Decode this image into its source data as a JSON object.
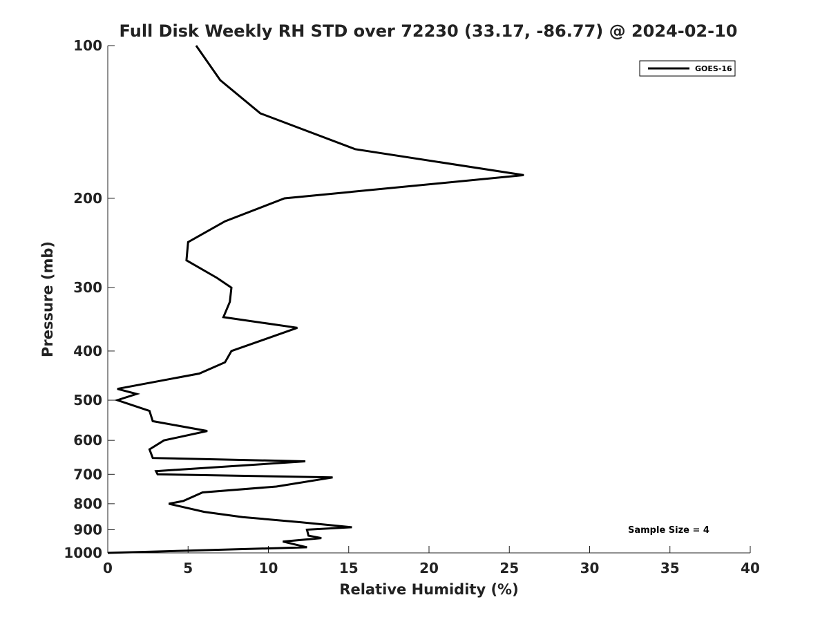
{
  "chart_data": {
    "type": "line",
    "title": "Full Disk Weekly RH STD over 72230 (33.17, -86.77) @ 2024-02-10",
    "xlabel": "Relative Humidity (%)",
    "ylabel": "Pressure (mb)",
    "xlim": [
      0,
      40
    ],
    "ylim": [
      1000,
      100
    ],
    "yscale": "log",
    "x_ticks": [
      0,
      5,
      10,
      15,
      20,
      25,
      30,
      35,
      40
    ],
    "x_tick_labels": [
      "0",
      "5",
      "10",
      "15",
      "20",
      "25",
      "30",
      "35",
      "40"
    ],
    "y_ticks": [
      100,
      200,
      300,
      400,
      500,
      600,
      700,
      800,
      900,
      1000
    ],
    "y_tick_labels": [
      "100",
      "200",
      "300",
      "400",
      "500",
      "600",
      "700",
      "800",
      "900",
      "1000"
    ],
    "legend": {
      "position": "top-right",
      "entries": [
        "GOES-16"
      ]
    },
    "annotation": "Sample Size = 4",
    "series": [
      {
        "name": "GOES-16",
        "color": "#000000",
        "points": [
          [
            5.5,
            100
          ],
          [
            7.0,
            117
          ],
          [
            9.5,
            136
          ],
          [
            15.4,
            160
          ],
          [
            25.9,
            180
          ],
          [
            11.0,
            200
          ],
          [
            7.3,
            222
          ],
          [
            5.0,
            244
          ],
          [
            4.9,
            265
          ],
          [
            6.8,
            287
          ],
          [
            7.7,
            300
          ],
          [
            7.6,
            320
          ],
          [
            7.2,
            343
          ],
          [
            11.8,
            360
          ],
          [
            9.7,
            380
          ],
          [
            7.7,
            400
          ],
          [
            7.3,
            421
          ],
          [
            5.7,
            443
          ],
          [
            0.6,
            475
          ],
          [
            1.8,
            486
          ],
          [
            0.6,
            500
          ],
          [
            2.6,
            525
          ],
          [
            2.8,
            550
          ],
          [
            6.2,
            575
          ],
          [
            3.5,
            600
          ],
          [
            2.6,
            625
          ],
          [
            2.8,
            650
          ],
          [
            12.3,
            660
          ],
          [
            3.0,
            690
          ],
          [
            3.1,
            700
          ],
          [
            14.0,
            710
          ],
          [
            10.5,
            740
          ],
          [
            5.9,
            760
          ],
          [
            4.7,
            790
          ],
          [
            3.8,
            800
          ],
          [
            6.0,
            830
          ],
          [
            8.4,
            850
          ],
          [
            12.0,
            870
          ],
          [
            15.2,
            890
          ],
          [
            12.4,
            900
          ],
          [
            12.5,
            925
          ],
          [
            13.3,
            935
          ],
          [
            10.9,
            950
          ],
          [
            12.4,
            975
          ],
          [
            5.0,
            990
          ],
          [
            0.0,
            1000
          ]
        ]
      }
    ]
  }
}
